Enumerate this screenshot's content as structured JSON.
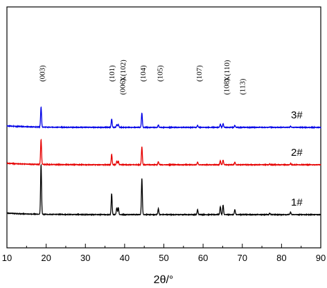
{
  "chart_data": {
    "type": "line",
    "xlabel": "2θ/°",
    "ylabel": "",
    "xlim": [
      10,
      90
    ],
    "x_ticks": [
      10,
      20,
      30,
      40,
      50,
      60,
      70,
      80,
      90
    ],
    "y_ticks_shown": false,
    "grid": false,
    "peaks": [
      {
        "x": 18.7,
        "h": 1.0
      },
      {
        "x": 36.7,
        "h": 0.42
      },
      {
        "x": 38.0,
        "h": 0.14
      },
      {
        "x": 38.4,
        "h": 0.14
      },
      {
        "x": 44.4,
        "h": 0.72
      },
      {
        "x": 48.6,
        "h": 0.12
      },
      {
        "x": 58.6,
        "h": 0.1
      },
      {
        "x": 64.4,
        "h": 0.16
      },
      {
        "x": 65.1,
        "h": 0.19
      },
      {
        "x": 68.1,
        "h": 0.1
      },
      {
        "x": 77.0,
        "h": 0.03
      },
      {
        "x": 82.3,
        "h": 0.05
      }
    ],
    "series": [
      {
        "name": "1#",
        "color": "#000000",
        "offset": 0.0,
        "scale": 1.0
      },
      {
        "name": "2#",
        "color": "#e60000",
        "offset": 1.0,
        "scale": 0.5
      },
      {
        "name": "3#",
        "color": "#0000e6",
        "offset": 1.75,
        "scale": 0.4
      }
    ],
    "annotations": [
      {
        "text": "(003)",
        "x": 18.9,
        "stack": 0
      },
      {
        "text": "(101)",
        "x": 36.7,
        "stack": 0
      },
      {
        "text": "(006)",
        "x": 38.0,
        "stack": 1
      },
      {
        "text": "X(102)",
        "x": 39.5,
        "stack": 0
      },
      {
        "text": "(104)",
        "x": 44.6,
        "stack": 0
      },
      {
        "text": "(105)",
        "x": 48.9,
        "stack": 0
      },
      {
        "text": "(107)",
        "x": 58.9,
        "stack": 0
      },
      {
        "text": "(108)",
        "x": 64.5,
        "stack": 1
      },
      {
        "text": "X(110)",
        "x": 66.0,
        "stack": 0
      },
      {
        "text": "(113)",
        "x": 68.5,
        "stack": 1
      }
    ]
  }
}
